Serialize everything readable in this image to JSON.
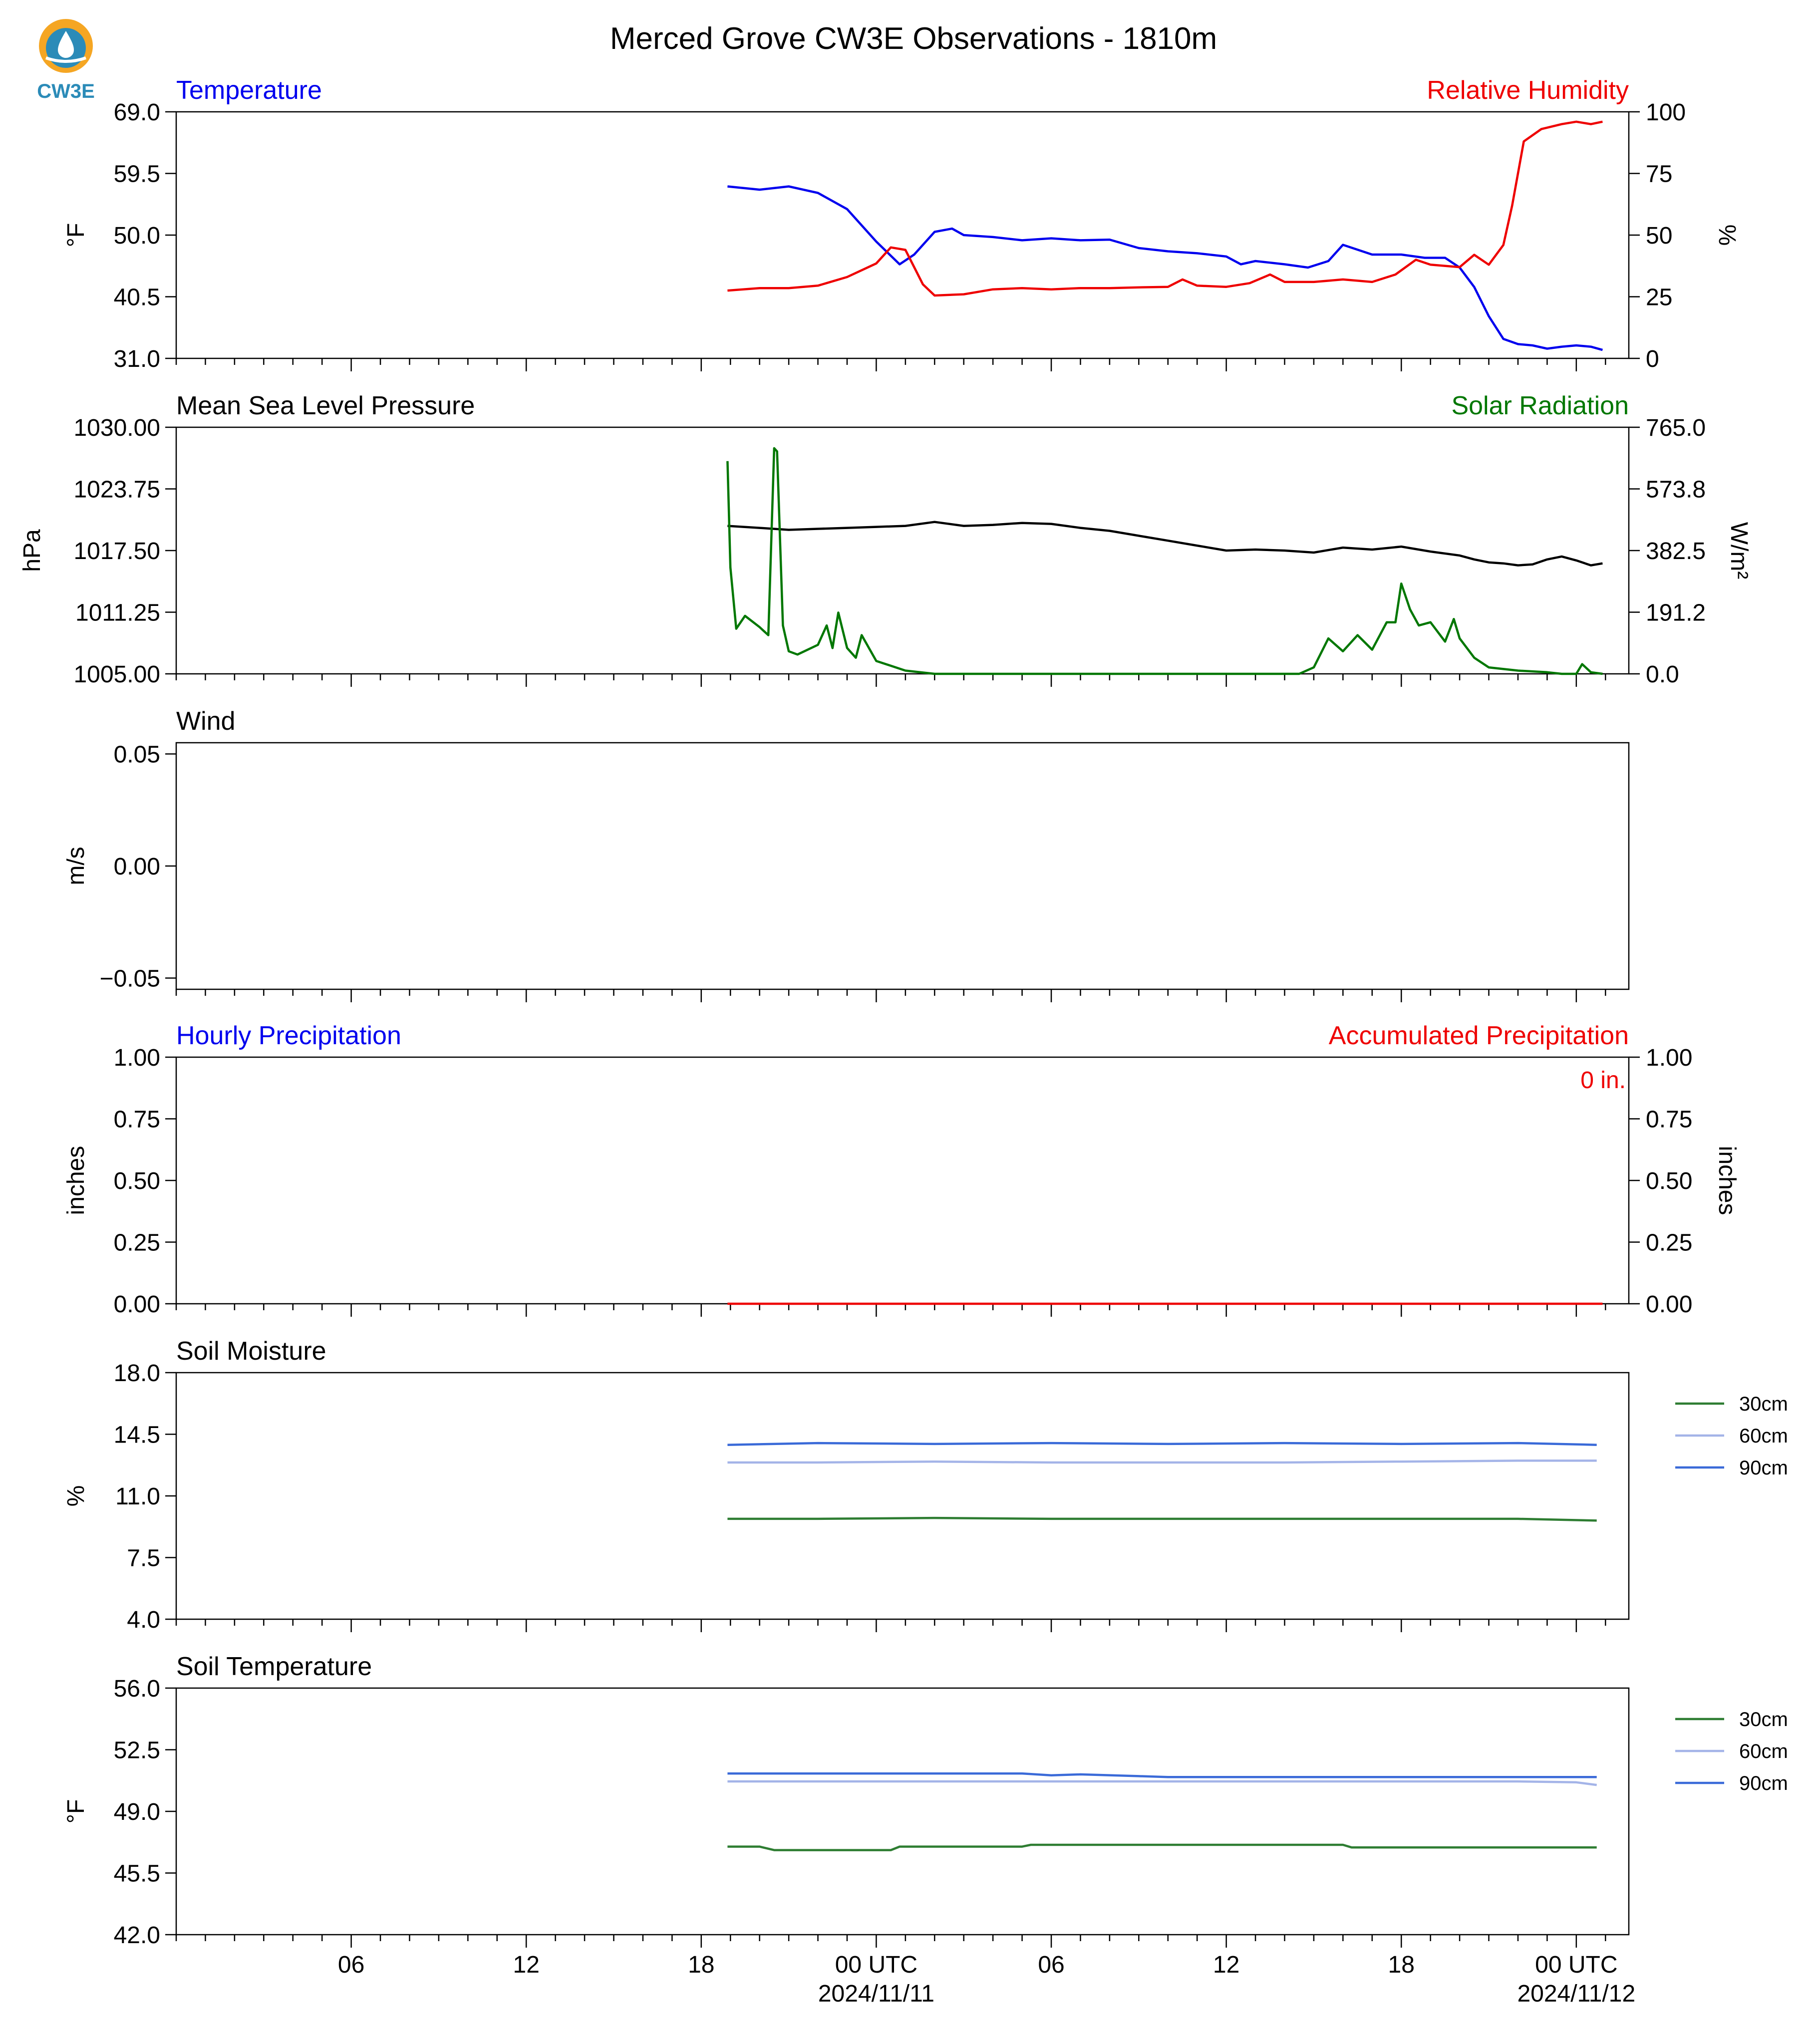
{
  "title": "Merced Grove CW3E Observations - 1810m",
  "logo_text": "CW3E",
  "colors": {
    "temperature": "#0000ee",
    "humidity": "#ee0000",
    "pressure": "#000000",
    "solar": "#007700",
    "soil_30": "#2e7d32",
    "soil_60": "#a4b4e8",
    "soil_90": "#3a6ad8",
    "logo_orange": "#f5a623",
    "logo_blue": "#2b8bb8"
  },
  "x_axis": {
    "ticks": [
      {
        "hour": 6,
        "label": "06",
        "sub": ""
      },
      {
        "hour": 12,
        "label": "12",
        "sub": ""
      },
      {
        "hour": 18,
        "label": "18",
        "sub": ""
      },
      {
        "hour": 24,
        "label": "00 UTC",
        "sub": "2024/11/11"
      },
      {
        "hour": 30,
        "label": "06",
        "sub": ""
      },
      {
        "hour": 36,
        "label": "12",
        "sub": ""
      },
      {
        "hour": 42,
        "label": "18",
        "sub": ""
      },
      {
        "hour": 48,
        "label": "00 UTC",
        "sub": "2024/11/12"
      }
    ]
  },
  "chart_data": [
    {
      "type": "line",
      "title_left": "Temperature",
      "title_right": "Relative Humidity",
      "ylabel": "°F",
      "ylabel_right": "%",
      "ylim": [
        31.0,
        69.0
      ],
      "yticks": [
        "69.0",
        "59.5",
        "50.0",
        "40.5",
        "31.0"
      ],
      "ylim_right": [
        0,
        100
      ],
      "yticks_right": [
        "100",
        "75",
        "50",
        "25",
        "0"
      ],
      "series": [
        {
          "key": "temperature",
          "axis": "left",
          "x": [
            18.9,
            20.0,
            21.0,
            22.0,
            23.0,
            24.0,
            24.8,
            25.3,
            26.0,
            26.6,
            27.0,
            28.0,
            29.0,
            30.0,
            31.0,
            32.0,
            33.0,
            34.0,
            35.0,
            36.0,
            36.5,
            37.0,
            38.0,
            38.8,
            39.5,
            40.0,
            41.0,
            42.0,
            42.8,
            43.5,
            44.0,
            44.5,
            45.0,
            45.5,
            46.0,
            46.5,
            47.0,
            47.5,
            48.0,
            48.5,
            48.9
          ],
          "y": [
            57.5,
            57.0,
            57.5,
            56.5,
            54.0,
            49.0,
            45.5,
            47.0,
            50.5,
            51.0,
            50.0,
            49.7,
            49.2,
            49.5,
            49.2,
            49.3,
            48.0,
            47.5,
            47.2,
            46.7,
            45.5,
            46.0,
            45.5,
            45.0,
            46.0,
            48.5,
            47.0,
            47.0,
            46.5,
            46.5,
            45.0,
            42.0,
            37.5,
            34.0,
            33.2,
            33.0,
            32.5,
            32.8,
            33.0,
            32.8,
            32.3
          ]
        },
        {
          "key": "humidity",
          "axis": "right",
          "x": [
            18.9,
            20.0,
            21.0,
            22.0,
            23.0,
            24.0,
            24.5,
            25.0,
            25.6,
            26.0,
            27.0,
            28.0,
            29.0,
            30.0,
            31.0,
            32.0,
            33.0,
            34.0,
            34.5,
            35.0,
            36.0,
            36.8,
            37.5,
            38.0,
            39.0,
            40.0,
            41.0,
            41.8,
            42.5,
            43.0,
            44.0,
            44.5,
            45.0,
            45.5,
            45.8,
            46.2,
            46.8,
            47.5,
            48.0,
            48.5,
            48.9
          ],
          "y": [
            27.5,
            28.5,
            28.5,
            29.5,
            33.0,
            38.5,
            45.0,
            44.0,
            30.0,
            25.5,
            26.0,
            28.0,
            28.5,
            28.0,
            28.5,
            28.5,
            28.8,
            29.0,
            32.0,
            29.5,
            29.0,
            30.5,
            34.0,
            31.0,
            31.0,
            32.0,
            31.0,
            34.0,
            40.0,
            38.0,
            37.0,
            42.0,
            38.0,
            46.0,
            62.0,
            88.0,
            93.0,
            95.0,
            96.0,
            95.0,
            96.0
          ]
        }
      ]
    },
    {
      "type": "line",
      "title_left": "Mean Sea Level Pressure",
      "title_right": "Solar Radiation",
      "ylabel": "hPa",
      "ylabel_right": "W/m²",
      "ylim": [
        1005.0,
        1030.0
      ],
      "yticks": [
        "1030.00",
        "1023.75",
        "1017.50",
        "1011.25",
        "1005.00"
      ],
      "ylim_right": [
        0.0,
        765.0
      ],
      "yticks_right": [
        "765.0",
        "573.8",
        "382.5",
        "191.2",
        "0.0"
      ],
      "series": [
        {
          "key": "pressure",
          "axis": "left",
          "x": [
            18.9,
            20.0,
            21.0,
            22.0,
            23.0,
            24.0,
            25.0,
            26.0,
            27.0,
            28.0,
            29.0,
            30.0,
            31.0,
            32.0,
            33.0,
            34.0,
            35.0,
            36.0,
            37.0,
            38.0,
            39.0,
            40.0,
            41.0,
            42.0,
            43.0,
            44.0,
            44.5,
            45.0,
            45.5,
            46.0,
            46.5,
            47.0,
            47.5,
            48.0,
            48.5,
            48.9
          ],
          "y": [
            1020.0,
            1019.8,
            1019.6,
            1019.7,
            1019.8,
            1019.9,
            1020.0,
            1020.4,
            1020.0,
            1020.1,
            1020.3,
            1020.2,
            1019.8,
            1019.5,
            1019.0,
            1018.5,
            1018.0,
            1017.5,
            1017.6,
            1017.5,
            1017.3,
            1017.8,
            1017.6,
            1017.9,
            1017.4,
            1017.0,
            1016.6,
            1016.3,
            1016.2,
            1016.0,
            1016.1,
            1016.6,
            1016.9,
            1016.5,
            1016.0,
            1016.2
          ]
        },
        {
          "key": "solar",
          "axis": "right",
          "x": [
            18.9,
            19.0,
            19.2,
            19.5,
            20.0,
            20.3,
            20.5,
            20.6,
            20.8,
            21.0,
            21.3,
            22.0,
            22.3,
            22.5,
            22.7,
            23.0,
            23.3,
            23.5,
            24.0,
            25.0,
            26.0,
            30.0,
            35.0,
            38.5,
            39.0,
            39.5,
            40.0,
            40.5,
            41.0,
            41.5,
            41.8,
            42.0,
            42.3,
            42.6,
            43.0,
            43.5,
            43.8,
            44.0,
            44.5,
            45.0,
            46.0,
            47.0,
            47.5,
            48.0,
            48.2,
            48.5,
            48.9
          ],
          "y": [
            660,
            330,
            140,
            180,
            145,
            120,
            700,
            690,
            150,
            70,
            60,
            90,
            150,
            80,
            190,
            80,
            50,
            120,
            40,
            10,
            0,
            0,
            0,
            0,
            20,
            110,
            70,
            120,
            75,
            160,
            160,
            280,
            200,
            150,
            160,
            100,
            170,
            110,
            50,
            20,
            10,
            5,
            0,
            0,
            30,
            5,
            0
          ]
        }
      ]
    },
    {
      "type": "line",
      "title_left": "Wind",
      "ylabel": "m/s",
      "ylim": [
        -0.055,
        0.055
      ],
      "yticks": [
        "0.05",
        "0.00",
        "−0.05"
      ],
      "series": []
    },
    {
      "type": "bar",
      "title_left": "Hourly Precipitation",
      "title_right": "Accumulated Precipitation",
      "annotation": "0 in.",
      "ylabel": "inches",
      "ylabel_right": "inches",
      "ylim": [
        0.0,
        1.0
      ],
      "yticks": [
        "1.00",
        "0.75",
        "0.50",
        "0.25",
        "0.00"
      ],
      "ylim_right": [
        0.0,
        1.0
      ],
      "yticks_right": [
        "1.00",
        "0.75",
        "0.50",
        "0.25",
        "0.00"
      ],
      "series": [
        {
          "key": "humidity",
          "axis": "right",
          "x": [
            18.9,
            48.9
          ],
          "y": [
            0.0,
            0.0
          ]
        }
      ]
    },
    {
      "type": "line",
      "title_left": "Soil Moisture",
      "ylabel": "%",
      "ylim": [
        4.0,
        18.0
      ],
      "yticks": [
        "18.0",
        "14.5",
        "11.0",
        "7.5",
        "4.0"
      ],
      "legend": [
        "30cm",
        "60cm",
        "90cm"
      ],
      "series": [
        {
          "key": "soil_30",
          "name": "30cm",
          "axis": "left",
          "x": [
            18.9,
            22.0,
            26.0,
            30.0,
            34.0,
            38.0,
            42.0,
            46.0,
            48.7
          ],
          "y": [
            9.7,
            9.7,
            9.75,
            9.7,
            9.7,
            9.7,
            9.7,
            9.7,
            9.6
          ]
        },
        {
          "key": "soil_60",
          "name": "60cm",
          "axis": "left",
          "x": [
            18.9,
            22.0,
            26.0,
            30.0,
            34.0,
            38.0,
            42.0,
            46.0,
            48.7
          ],
          "y": [
            12.9,
            12.9,
            12.95,
            12.9,
            12.9,
            12.9,
            12.95,
            13.0,
            13.0
          ]
        },
        {
          "key": "soil_90",
          "name": "90cm",
          "axis": "left",
          "x": [
            18.9,
            22.0,
            26.0,
            30.0,
            34.0,
            38.0,
            42.0,
            46.0,
            48.7
          ],
          "y": [
            13.9,
            14.0,
            13.95,
            14.0,
            13.95,
            14.0,
            13.95,
            14.0,
            13.9
          ]
        }
      ]
    },
    {
      "type": "line",
      "title_left": "Soil Temperature",
      "ylabel": "°F",
      "ylim": [
        42.0,
        56.0
      ],
      "yticks": [
        "56.0",
        "52.5",
        "49.0",
        "45.5",
        "42.0"
      ],
      "legend": [
        "30cm",
        "60cm",
        "90cm"
      ],
      "series": [
        {
          "key": "soil_30",
          "name": "30cm",
          "axis": "left",
          "x": [
            18.9,
            20.0,
            20.5,
            24.5,
            24.8,
            29.0,
            29.3,
            40.0,
            40.3,
            48.7
          ],
          "y": [
            47.0,
            47.0,
            46.8,
            46.8,
            47.0,
            47.0,
            47.1,
            47.1,
            46.95,
            46.95
          ]
        },
        {
          "key": "soil_60",
          "name": "60cm",
          "axis": "left",
          "x": [
            18.9,
            24.0,
            30.0,
            36.0,
            42.0,
            46.0,
            48.0,
            48.7
          ],
          "y": [
            50.7,
            50.7,
            50.7,
            50.7,
            50.7,
            50.7,
            50.65,
            50.5
          ]
        },
        {
          "key": "soil_90",
          "name": "90cm",
          "axis": "left",
          "x": [
            18.9,
            24.0,
            29.0,
            30.0,
            31.0,
            33.0,
            34.0,
            40.0,
            46.0,
            48.7
          ],
          "y": [
            51.15,
            51.15,
            51.15,
            51.05,
            51.1,
            51.0,
            50.95,
            50.95,
            50.95,
            50.95
          ]
        }
      ]
    }
  ]
}
